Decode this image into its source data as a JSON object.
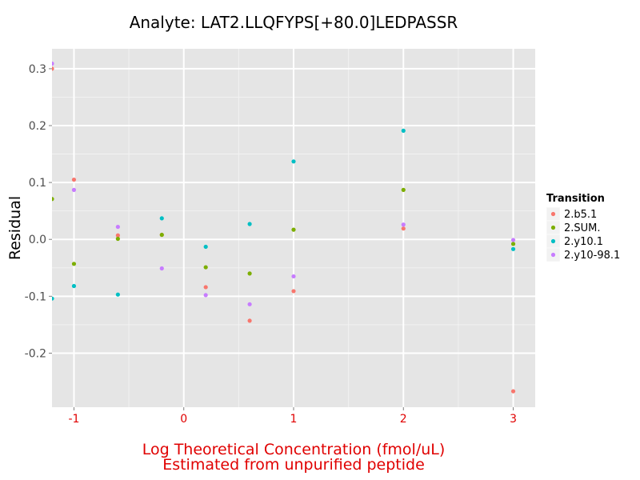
{
  "chart_data": {
    "type": "scatter",
    "title": "Analyte: LAT2.LLQFYPS[+80.0]LEDPASSR",
    "xlabel": "Log Theoretical Concentration (fmol/uL)",
    "xlabel_sub": "Estimated from unpurified peptide",
    "ylabel": "Residual",
    "xlim": [
      -1.2,
      3.2
    ],
    "ylim": [
      -0.295,
      0.335
    ],
    "x_ticks": [
      -1,
      0,
      1,
      2,
      3
    ],
    "x_tick_labels": [
      "-1",
      "0",
      "1",
      "2",
      "3"
    ],
    "y_ticks": [
      -0.2,
      -0.1,
      0.0,
      0.1,
      0.2,
      0.3
    ],
    "y_tick_labels": [
      "-0.2",
      "-0.1",
      "0.0",
      "0.1",
      "0.2",
      "0.3"
    ],
    "legend_title": "Transition",
    "legend_position": "right",
    "grid": true,
    "series": [
      {
        "name": "2.b5.1",
        "color": "#F8766D",
        "points": [
          {
            "x": -1.2,
            "y": 0.3
          },
          {
            "x": -1.0,
            "y": 0.105
          },
          {
            "x": -0.6,
            "y": 0.007
          },
          {
            "x": -0.2,
            "y": 0.008
          },
          {
            "x": 0.2,
            "y": -0.084
          },
          {
            "x": 0.6,
            "y": -0.143
          },
          {
            "x": 1.0,
            "y": -0.091
          },
          {
            "x": 2.0,
            "y": 0.019
          },
          {
            "x": 3.0,
            "y": -0.267
          }
        ]
      },
      {
        "name": "2.SUM.",
        "color": "#7CAE00",
        "points": [
          {
            "x": -1.2,
            "y": 0.071
          },
          {
            "x": -1.0,
            "y": -0.043
          },
          {
            "x": -0.6,
            "y": 0.001
          },
          {
            "x": -0.2,
            "y": 0.008
          },
          {
            "x": 0.2,
            "y": -0.049
          },
          {
            "x": 0.6,
            "y": -0.06
          },
          {
            "x": 1.0,
            "y": 0.017
          },
          {
            "x": 2.0,
            "y": 0.087
          },
          {
            "x": 3.0,
            "y": -0.008
          }
        ]
      },
      {
        "name": "2.y10.1",
        "color": "#00BFC4",
        "points": [
          {
            "x": -1.2,
            "y": -0.104
          },
          {
            "x": -1.0,
            "y": -0.082
          },
          {
            "x": -0.6,
            "y": -0.097
          },
          {
            "x": -0.2,
            "y": 0.037
          },
          {
            "x": 0.2,
            "y": -0.013
          },
          {
            "x": 0.6,
            "y": 0.027
          },
          {
            "x": 1.0,
            "y": 0.137
          },
          {
            "x": 2.0,
            "y": 0.191
          },
          {
            "x": 3.0,
            "y": -0.017
          }
        ]
      },
      {
        "name": "2.y10-98.1",
        "color": "#C77CFF",
        "points": [
          {
            "x": -1.2,
            "y": 0.309
          },
          {
            "x": -1.0,
            "y": 0.087
          },
          {
            "x": -0.6,
            "y": 0.022
          },
          {
            "x": -0.2,
            "y": -0.051
          },
          {
            "x": 0.2,
            "y": -0.098
          },
          {
            "x": 0.6,
            "y": -0.114
          },
          {
            "x": 1.0,
            "y": -0.065
          },
          {
            "x": 2.0,
            "y": 0.026
          },
          {
            "x": 3.0,
            "y": -0.001
          }
        ]
      }
    ]
  },
  "style": {
    "panel_bg": "#E5E5E5",
    "grid_major": "#FFFFFF",
    "grid_minor": "#F2F2F2",
    "x_axis_text_color": "#E00000",
    "y_axis_text_color": "#4D4D4D"
  }
}
